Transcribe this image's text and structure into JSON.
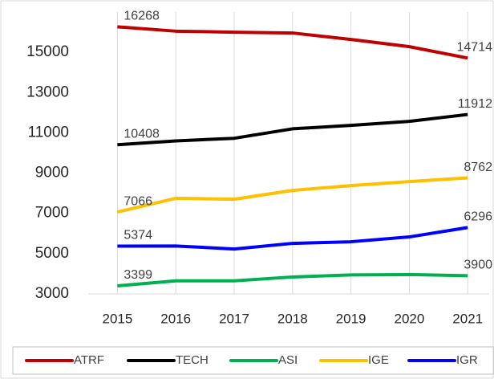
{
  "chart_data": {
    "type": "line",
    "categories": [
      "2015",
      "2016",
      "2017",
      "2018",
      "2019",
      "2020",
      "2021"
    ],
    "series": [
      {
        "name": "ATRF",
        "color": "#c00000",
        "values": [
          16268,
          16050,
          16000,
          15960,
          15640,
          15280,
          14714
        ]
      },
      {
        "name": "TECH",
        "color": "#000000",
        "values": [
          10408,
          10600,
          10730,
          11200,
          11370,
          11570,
          11912
        ]
      },
      {
        "name": "ASI",
        "color": "#00b050",
        "values": [
          3399,
          3650,
          3650,
          3840,
          3940,
          3960,
          3900
        ]
      },
      {
        "name": "IGE",
        "color": "#ffc000",
        "values": [
          7066,
          7750,
          7700,
          8140,
          8380,
          8580,
          8762
        ]
      },
      {
        "name": "IGR",
        "color": "#0000ff",
        "values": [
          5374,
          5380,
          5230,
          5510,
          5590,
          5830,
          6296
        ]
      }
    ],
    "ylim": [
      3000,
      17000
    ],
    "yticks": [
      3000,
      5000,
      7000,
      9000,
      11000,
      13000,
      15000
    ],
    "grid": true,
    "legend": "bottom"
  }
}
